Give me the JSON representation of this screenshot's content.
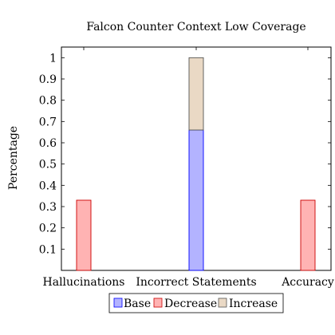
{
  "chart_data": {
    "type": "bar",
    "title": "Falcon Counter Context Low Coverage",
    "ylabel": "Percentage",
    "xlabel": "",
    "categories": [
      "Hallucinations",
      "Incorrect Statements",
      "Accuracy"
    ],
    "ylim": [
      0,
      1.05
    ],
    "yticks": [
      "0.1",
      "0.2",
      "0.3",
      "0.4",
      "0.5",
      "0.6",
      "0.7",
      "0.8",
      "0.9",
      "1"
    ],
    "ytick_values": [
      0.1,
      0.2,
      0.3,
      0.4,
      0.5,
      0.6,
      0.7,
      0.8,
      0.9,
      1.0
    ],
    "series": [
      {
        "name": "Base",
        "values": [
          0,
          0.66,
          0
        ],
        "fill": "#b3b3ff",
        "stroke": "#0000ff"
      },
      {
        "name": "Decrease",
        "values": [
          0.33,
          0,
          0.33
        ],
        "fill": "#ffb3b3",
        "stroke": "#cc0000"
      },
      {
        "name": "Increase",
        "values": [
          0,
          0.34,
          0
        ],
        "fill": "#ead9c5",
        "stroke": "#555555"
      }
    ],
    "legend_position": "bottom-center",
    "grid": false
  }
}
